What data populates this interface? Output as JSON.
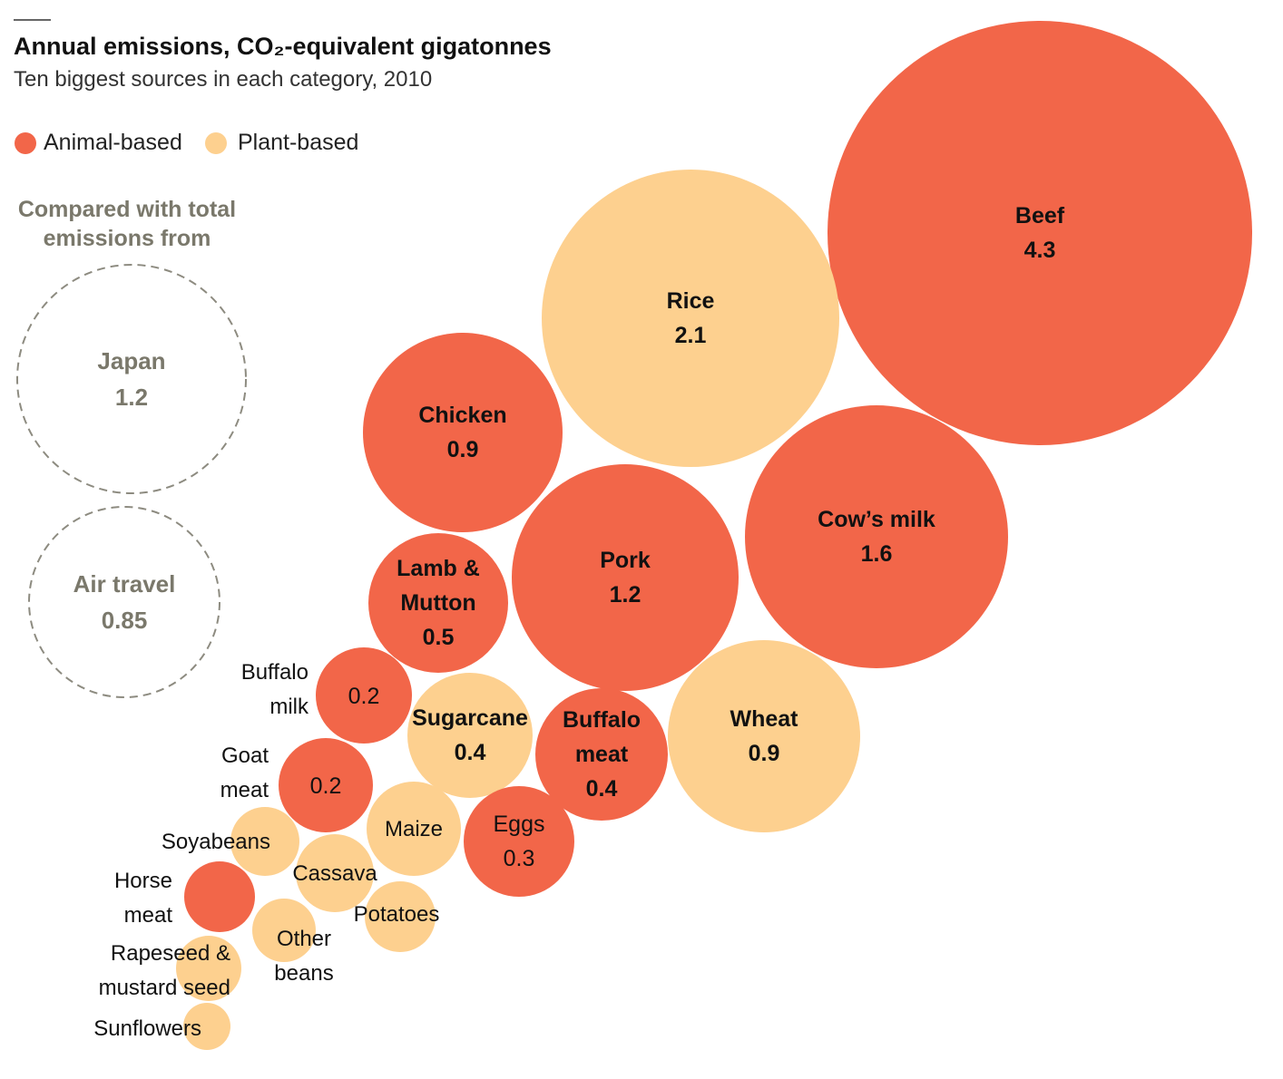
{
  "chart_data": {
    "type": "bubble",
    "title": "Annual emissions, CO₂-equivalent gigatonnes",
    "subtitle": "Ten biggest sources in each category, 2010",
    "legend": [
      {
        "name": "Animal-based",
        "color": "#f26649"
      },
      {
        "name": "Plant-based",
        "color": "#fdd08f"
      }
    ],
    "comparison_heading": [
      "Compared with total",
      "emissions from"
    ],
    "reference": [
      {
        "name": "Japan",
        "value": 1.2,
        "value_label": "1.2"
      },
      {
        "name": "Air travel",
        "value": 0.85,
        "value_label": "0.85"
      }
    ],
    "series": [
      {
        "name": "Beef",
        "category": "Animal-based",
        "value": 4.3,
        "value_label": "4.3"
      },
      {
        "name": "Rice",
        "category": "Plant-based",
        "value": 2.1,
        "value_label": "2.1"
      },
      {
        "name": "Cow’s milk",
        "category": "Animal-based",
        "value": 1.6,
        "value_label": "1.6"
      },
      {
        "name": "Pork",
        "category": "Animal-based",
        "value": 1.2,
        "value_label": "1.2"
      },
      {
        "name": "Chicken",
        "category": "Animal-based",
        "value": 0.9,
        "value_label": "0.9"
      },
      {
        "name": "Wheat",
        "category": "Plant-based",
        "value": 0.9,
        "value_label": "0.9"
      },
      {
        "name": "Lamb & Mutton",
        "category": "Animal-based",
        "value": 0.5,
        "value_label": "0.5"
      },
      {
        "name": "Buffalo meat",
        "category": "Animal-based",
        "value": 0.4,
        "value_label": "0.4"
      },
      {
        "name": "Sugarcane",
        "category": "Plant-based",
        "value": 0.4,
        "value_label": "0.4"
      },
      {
        "name": "Eggs",
        "category": "Animal-based",
        "value": 0.3,
        "value_label": "0.3"
      },
      {
        "name": "Buffalo milk",
        "category": "Animal-based",
        "value": 0.2,
        "value_label": "0.2"
      },
      {
        "name": "Goat meat",
        "category": "Animal-based",
        "value": 0.2,
        "value_label": "0.2"
      },
      {
        "name": "Maize",
        "category": "Plant-based",
        "value": 0.2
      },
      {
        "name": "Cassava",
        "category": "Plant-based",
        "value": 0.1
      },
      {
        "name": "Potatoes",
        "category": "Plant-based",
        "value": 0.1
      },
      {
        "name": "Soyabeans",
        "category": "Plant-based",
        "value": 0.1
      },
      {
        "name": "Horse meat",
        "category": "Animal-based",
        "value": 0.1
      },
      {
        "name": "Other beans",
        "category": "Plant-based",
        "value": 0.1
      },
      {
        "name": "Rapeseed & mustard seed",
        "category": "Plant-based",
        "value": 0.1
      },
      {
        "name": "Sunflowers",
        "category": "Plant-based",
        "value": 0.05
      }
    ]
  }
}
